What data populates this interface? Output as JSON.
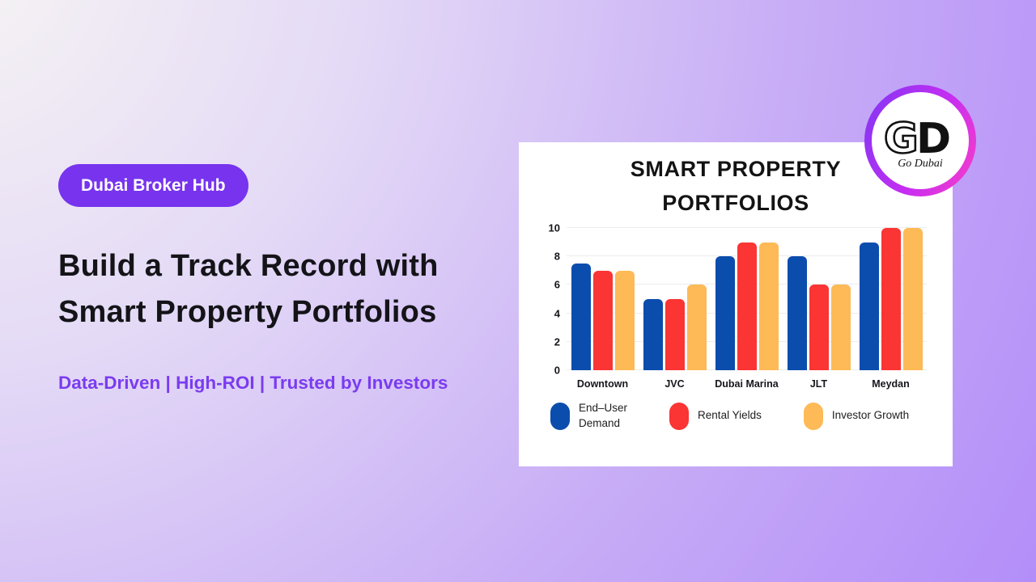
{
  "badge": {
    "label": "Dubai Broker Hub"
  },
  "heading": {
    "line1": "Build a Track Record with",
    "line2": "Smart Property Portfolios"
  },
  "subtitle": "Data-Driven | High-ROI | Trusted by Investors",
  "logo": {
    "monogram_g": "G",
    "monogram_d": "D",
    "script": "Go Dubai"
  },
  "colors": {
    "badge_purple": "#7733ee",
    "subtitle_purple": "#7a3bf0",
    "background_purple": "#b18bf9",
    "card_white": "#ffffff",
    "bar_blue": "#0b4dad",
    "bar_red": "#fb3434",
    "bar_orange": "#fdba56",
    "logo_ring_start": "#8a35f3",
    "logo_ring_end": "#f43ccb"
  },
  "chart_data": {
    "type": "bar",
    "title_line1": "SMART PROPERTY",
    "title_line2": "PORTFOLIOS",
    "categories": [
      "Downtown",
      "JVC",
      "Dubai Marina",
      "JLT",
      "Meydan"
    ],
    "series": [
      {
        "name": "End-User Demand",
        "legend_label": "End–User\nDemand",
        "color": "#0b4dad",
        "values": [
          7.5,
          5,
          8,
          8,
          9
        ]
      },
      {
        "name": "Rental Yields",
        "legend_label": "Rental Yields",
        "color": "#fb3434",
        "values": [
          7,
          5,
          9,
          6,
          10
        ]
      },
      {
        "name": "Investor Growth",
        "legend_label": "Investor Growth",
        "color": "#fdba56",
        "values": [
          7,
          6,
          9,
          6,
          10
        ]
      }
    ],
    "ylim": [
      0,
      10
    ],
    "yticks": [
      0,
      2,
      4,
      6,
      8,
      10
    ],
    "grid": true,
    "legend_position": "bottom"
  }
}
